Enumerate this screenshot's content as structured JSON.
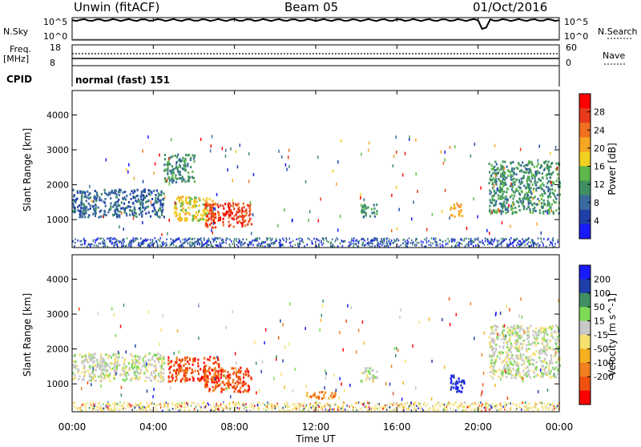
{
  "header": {
    "station": "Unwin (fitACF)",
    "beam": "Beam 05",
    "date": "01/Oct/2016"
  },
  "panels": {
    "nsky_label": "N.Sky",
    "nsky_top_tick": "10^5",
    "nsky_bottom_tick": "10^0",
    "nsearch_label": "N.Search",
    "freq_label": "Freq.",
    "freq_unit": "[MHz]",
    "freq_top_tick": "18",
    "freq_bottom_tick": "8",
    "nave_label": "Nave",
    "nave_top_tick": "60",
    "nave_bottom_tick": "0",
    "cpid_label": "CPID",
    "cpid_value": "normal (fast) 151"
  },
  "x_axis": {
    "ticks": [
      "00:00",
      "04:00",
      "08:00",
      "12:00",
      "16:00",
      "20:00",
      "00:00"
    ],
    "label": "Time UT"
  },
  "colors": {
    "power": [
      "#1a1aff",
      "#1f3fa8",
      "#3a6a9e",
      "#3f8f63",
      "#5cb84a",
      "#f0d020",
      "#f5a623",
      "#f07020",
      "#e63a1a",
      "#ff0000"
    ],
    "velocity": [
      "#1a1aff",
      "#1f3fa8",
      "#3f8f63",
      "#7ed957",
      "#c8c8c8",
      "#f5e070",
      "#f5b020",
      "#f08020",
      "#f05010",
      "#ff0000"
    ]
  },
  "chart_data": [
    {
      "type": "heatmap",
      "name": "power",
      "ylabel": "Slant Range [km]",
      "yticks": [
        "1000",
        "2000",
        "3000",
        "4000"
      ],
      "ylim": [
        200,
        4700
      ],
      "xlim_hours": [
        0,
        24
      ],
      "colorbar": {
        "label": "Power [dB]",
        "ticks": [
          "4",
          "8",
          "12",
          "16",
          "20",
          "24",
          "28"
        ]
      },
      "regions": [
        {
          "t": [
            0.0,
            4.5
          ],
          "range": [
            1100,
            1900
          ],
          "level": 2,
          "note": "rising arcs"
        },
        {
          "t": [
            4.5,
            6.0
          ],
          "range": [
            2100,
            2900
          ],
          "level": 3
        },
        {
          "t": [
            5.0,
            7.0
          ],
          "range": [
            1000,
            1700
          ],
          "level": 5
        },
        {
          "t": [
            6.5,
            8.8
          ],
          "range": [
            800,
            1500
          ],
          "level": 8
        },
        {
          "t": [
            14.2,
            15.0
          ],
          "range": [
            1100,
            1500
          ],
          "level": 3
        },
        {
          "t": [
            18.6,
            19.2
          ],
          "range": [
            1100,
            1500
          ],
          "level": 6
        },
        {
          "t": [
            20.5,
            24.0
          ],
          "range": [
            1200,
            2700
          ],
          "level": 3
        }
      ]
    },
    {
      "type": "heatmap",
      "name": "velocity",
      "ylabel": "Slant Range [km]",
      "yticks": [
        "1000",
        "2000",
        "3000",
        "4000"
      ],
      "ylim": [
        200,
        4700
      ],
      "xlim_hours": [
        0,
        24
      ],
      "colorbar": {
        "label": "Velocity [m s^-1]",
        "ticks": [
          "200",
          "100",
          "50",
          "15",
          "-15",
          "-50",
          "-100",
          "-200"
        ]
      },
      "regions": [
        {
          "t": [
            0.0,
            4.5
          ],
          "range": [
            1100,
            1900
          ],
          "level": 4
        },
        {
          "t": [
            4.7,
            7.2
          ],
          "range": [
            1100,
            1800
          ],
          "level": 8
        },
        {
          "t": [
            6.5,
            8.8
          ],
          "range": [
            800,
            1500
          ],
          "level": 8
        },
        {
          "t": [
            11.5,
            13.0
          ],
          "range": [
            600,
            800
          ],
          "level": 7
        },
        {
          "t": [
            14.2,
            15.0
          ],
          "range": [
            1100,
            1500
          ],
          "level": 4
        },
        {
          "t": [
            18.6,
            19.3
          ],
          "range": [
            800,
            1300
          ],
          "level": 0
        },
        {
          "t": [
            20.5,
            24.0
          ],
          "range": [
            1200,
            2700
          ],
          "level": 4
        }
      ]
    }
  ]
}
